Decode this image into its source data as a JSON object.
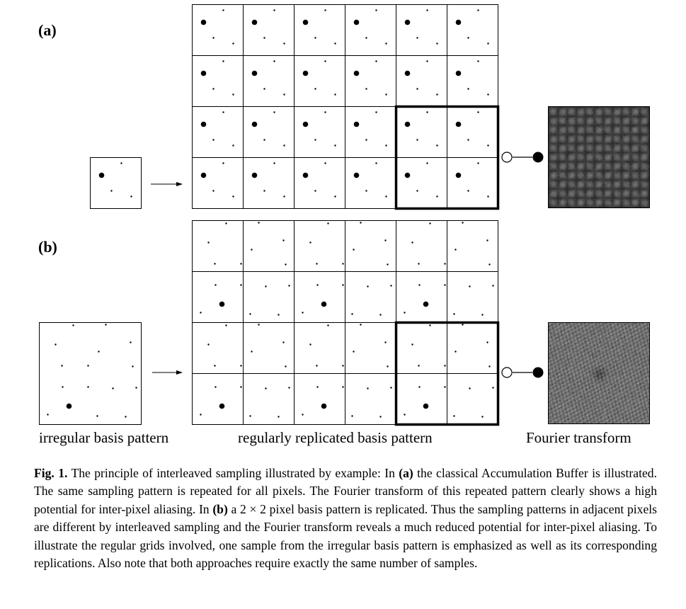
{
  "figure": {
    "panel_a": {
      "label": "(a)",
      "spectrum": "aliased"
    },
    "panel_b": {
      "label": "(b)",
      "spectrum": "noise"
    },
    "labels": {
      "left": "irregular basis pattern",
      "middle": "regularly replicated basis pattern",
      "right": "Fourier transform"
    }
  },
  "caption": {
    "fig_label": "Fig. 1.",
    "text_1": " The principle of interleaved sampling illustrated by example: In ",
    "ref_a": "(a)",
    "text_2": " the classical Accumulation Buffer is illustrated. The same sampling pattern is repeated for all pixels. The Fourier transform of this repeated pattern clearly shows a high potential for inter-pixel aliasing. In ",
    "ref_b": "(b)",
    "text_3": " a 2 × 2 pixel basis pattern is replicated. Thus the sampling patterns in adjacent pixels are different by interleaved sampling and the Fourier transform reveals a much reduced potential for inter-pixel aliasing. To illustrate the regular grids involved, one sample from the irregular basis pattern is emphasized as well as its corresponding replications. Also note that both approaches require exactly the same number of samples."
  }
}
